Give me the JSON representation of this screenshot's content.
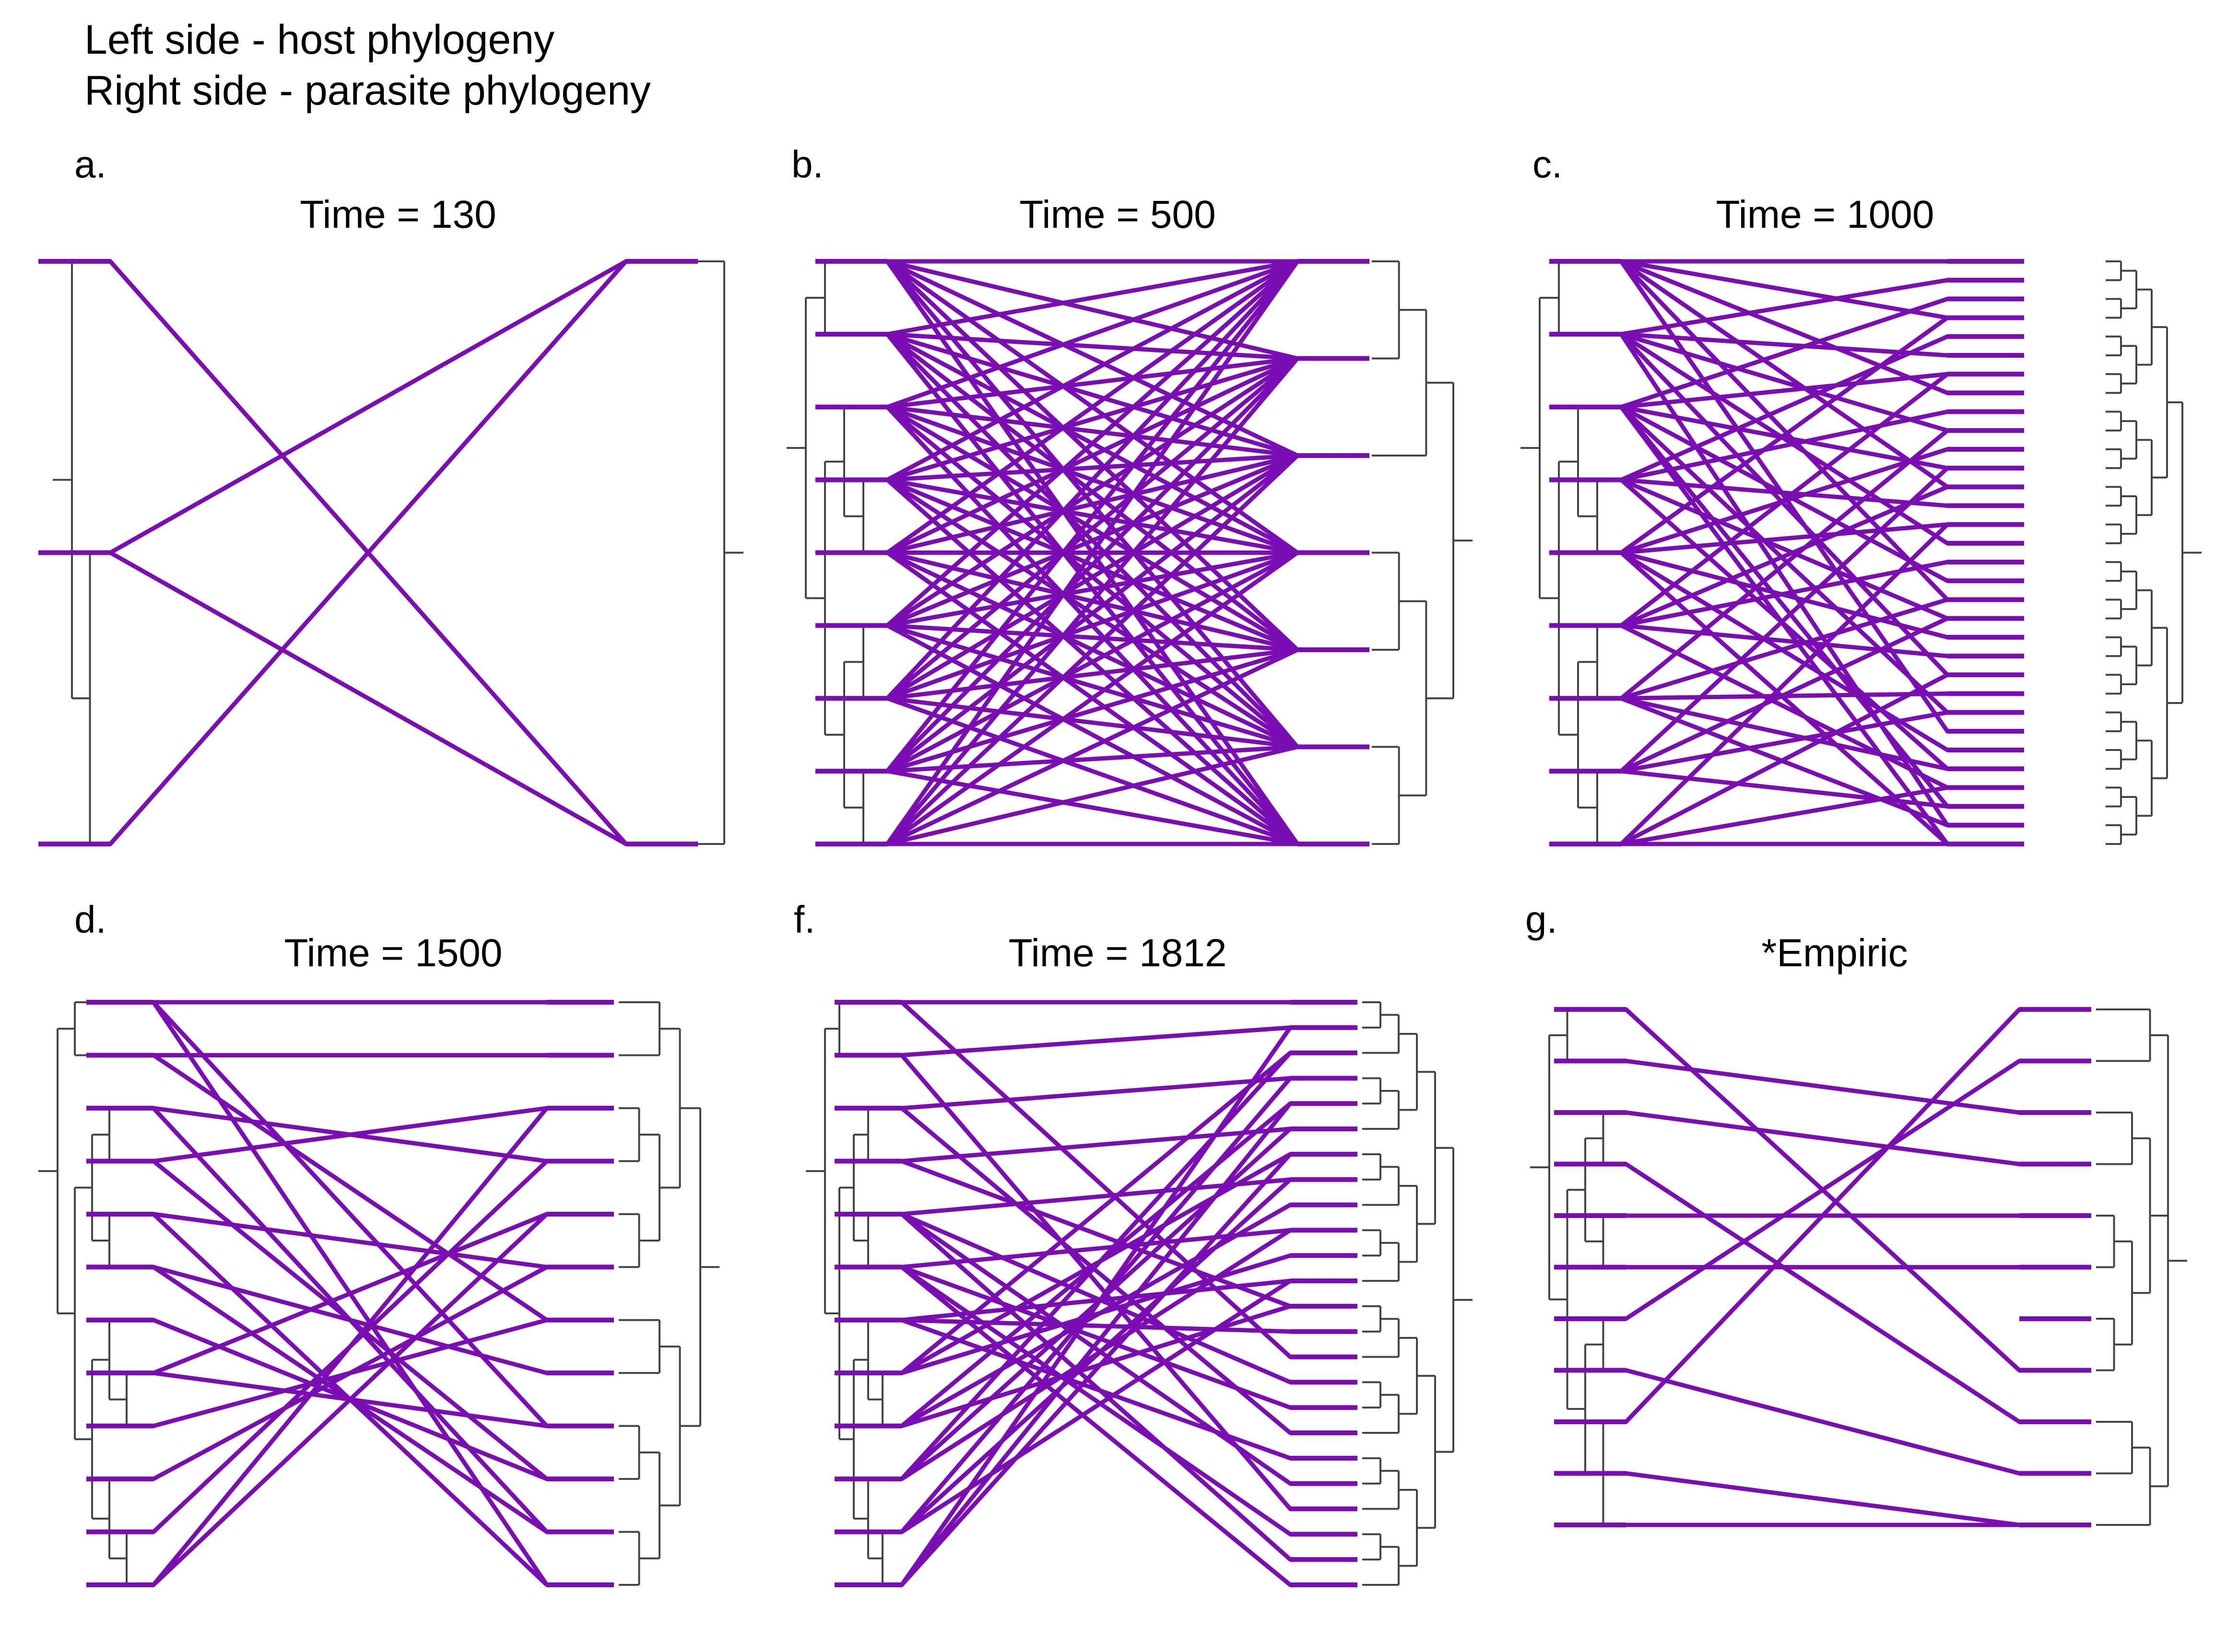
{
  "header": {
    "line1": "Left side - host phylogeny",
    "line2": "Right side - parasite phylogeny"
  },
  "colors": {
    "association": "#7a0db3",
    "tree": "#444444"
  },
  "panels": [
    {
      "label": "a.",
      "title": "Time = 130",
      "host_tips": 3,
      "parasite_tips": 2,
      "host_tree": [
        [
          0,
          [
            1,
            2
          ]
        ]
      ],
      "parasite_tree": [
        0,
        1
      ],
      "links": [
        [
          0,
          1
        ],
        [
          1,
          0
        ],
        [
          1,
          1
        ],
        [
          2,
          0
        ]
      ]
    },
    {
      "label": "b.",
      "title": "Time = 500",
      "host_tips": 9,
      "parasite_tips": 7,
      "host_tree": [
        [
          [
            0,
            1
          ],
          [
            [
              2,
              [
                3,
                4
              ]
            ],
            [
              [
                5,
                6
              ],
              [
                7,
                8
              ]
            ]
          ]
        ]
      ],
      "parasite_tree": [
        [
          [
            0,
            1
          ],
          2
        ],
        [
          [
            3,
            4
          ],
          [
            5,
            6
          ]
        ]
      ],
      "links": "all-to-all"
    },
    {
      "label": "c.",
      "title": "Time = 1000",
      "host_tips": 9,
      "parasite_tips": 32,
      "host_tree": [
        [
          [
            0,
            1
          ],
          [
            [
              2,
              [
                3,
                4
              ]
            ],
            [
              [
                5,
                6
              ],
              [
                7,
                8
              ]
            ]
          ]
        ]
      ],
      "parasite_tree": "balanced",
      "links": [
        [
          0,
          0
        ],
        [
          0,
          3
        ],
        [
          0,
          7
        ],
        [
          0,
          12
        ],
        [
          0,
          18
        ],
        [
          0,
          25
        ],
        [
          1,
          1
        ],
        [
          1,
          5
        ],
        [
          1,
          9
        ],
        [
          1,
          15
        ],
        [
          1,
          22
        ],
        [
          1,
          30
        ],
        [
          2,
          2
        ],
        [
          2,
          6
        ],
        [
          2,
          11
        ],
        [
          2,
          17
        ],
        [
          2,
          24
        ],
        [
          2,
          29
        ],
        [
          2,
          31
        ],
        [
          3,
          4
        ],
        [
          3,
          8
        ],
        [
          3,
          13
        ],
        [
          3,
          19
        ],
        [
          3,
          27
        ],
        [
          4,
          3
        ],
        [
          4,
          10
        ],
        [
          4,
          14
        ],
        [
          4,
          20
        ],
        [
          4,
          26
        ],
        [
          4,
          31
        ],
        [
          5,
          6
        ],
        [
          5,
          12
        ],
        [
          5,
          16
        ],
        [
          5,
          21
        ],
        [
          5,
          28
        ],
        [
          6,
          9
        ],
        [
          6,
          18
        ],
        [
          6,
          23
        ],
        [
          6,
          27
        ],
        [
          6,
          30
        ],
        [
          7,
          11
        ],
        [
          7,
          19
        ],
        [
          7,
          24
        ],
        [
          7,
          29
        ],
        [
          8,
          14
        ],
        [
          8,
          22
        ],
        [
          8,
          28
        ],
        [
          8,
          31
        ]
      ]
    },
    {
      "label": "d.",
      "title": "Time =  1500",
      "host_tips": 12,
      "parasite_tips": 12,
      "host_tree": [
        [
          [
            0,
            1
          ],
          [
            [
              [
                2,
                3
              ],
              [
                4,
                5
              ]
            ],
            [
              [
                6,
                [
                  7,
                  8
                ]
              ],
              [
                9,
                [
                  10,
                  11
                ]
              ]
            ]
          ]
        ]
      ],
      "parasite_tree": [
        [
          [
            0,
            1
          ],
          [
            [
              2,
              3
            ],
            [
              4,
              5
            ]
          ]
        ],
        [
          [
            6,
            7
          ],
          [
            [
              8,
              9
            ],
            [
              10,
              11
            ]
          ]
        ]
      ],
      "links": [
        [
          0,
          0
        ],
        [
          0,
          8
        ],
        [
          0,
          11
        ],
        [
          1,
          1
        ],
        [
          1,
          6
        ],
        [
          2,
          3
        ],
        [
          2,
          10
        ],
        [
          3,
          2
        ],
        [
          3,
          9
        ],
        [
          4,
          5
        ],
        [
          4,
          11
        ],
        [
          5,
          7
        ],
        [
          5,
          10
        ],
        [
          6,
          9
        ],
        [
          7,
          4
        ],
        [
          7,
          8
        ],
        [
          8,
          6
        ],
        [
          9,
          5
        ],
        [
          10,
          3
        ],
        [
          11,
          2
        ],
        [
          11,
          4
        ]
      ]
    },
    {
      "label": "f.",
      "title": "Time = 1812",
      "host_tips": 12,
      "parasite_tips": 24,
      "host_tree": [
        [
          [
            0,
            1
          ],
          [
            [
              [
                2,
                3
              ],
              [
                4,
                5
              ]
            ],
            [
              [
                6,
                [
                  7,
                  8
                ]
              ],
              [
                9,
                [
                  10,
                  11
                ]
              ]
            ]
          ]
        ]
      ],
      "parasite_tree": "balanced",
      "links": [
        [
          0,
          0
        ],
        [
          0,
          14
        ],
        [
          1,
          1
        ],
        [
          1,
          20
        ],
        [
          2,
          3
        ],
        [
          2,
          17
        ],
        [
          3,
          5
        ],
        [
          3,
          12
        ],
        [
          4,
          7
        ],
        [
          4,
          15
        ],
        [
          4,
          19
        ],
        [
          4,
          22
        ],
        [
          5,
          9
        ],
        [
          5,
          16
        ],
        [
          5,
          21
        ],
        [
          5,
          23
        ],
        [
          6,
          11
        ],
        [
          6,
          13
        ],
        [
          6,
          18
        ],
        [
          7,
          2
        ],
        [
          7,
          6
        ],
        [
          7,
          10
        ],
        [
          8,
          4
        ],
        [
          8,
          8
        ],
        [
          8,
          12
        ],
        [
          9,
          2
        ],
        [
          9,
          5
        ],
        [
          9,
          9
        ],
        [
          10,
          3
        ],
        [
          10,
          7
        ],
        [
          10,
          11
        ],
        [
          11,
          1
        ],
        [
          11,
          4
        ],
        [
          11,
          6
        ]
      ]
    },
    {
      "label": "g.",
      "title": "*Empiric",
      "host_tips": 11,
      "parasite_tips": 11,
      "host_tree": [
        [
          [
            0,
            1
          ],
          [
            [
              [
                2,
                3
              ],
              [
                4,
                5
              ]
            ],
            [
              [
                6,
                7
              ],
              [
                8,
                9,
                10
              ]
            ]
          ]
        ]
      ],
      "parasite_tree": [
        [
          0,
          1
        ],
        [
          [
            2,
            3
          ],
          [
            [
              4,
              5
            ],
            [
              6,
              7
            ]
          ]
        ],
        [
          [
            8,
            9
          ],
          10
        ]
      ],
      "links": [
        [
          0,
          7
        ],
        [
          1,
          2
        ],
        [
          2,
          3
        ],
        [
          3,
          8
        ],
        [
          4,
          4
        ],
        [
          5,
          5
        ],
        [
          6,
          1
        ],
        [
          7,
          9
        ],
        [
          8,
          0
        ],
        [
          9,
          10
        ],
        [
          10,
          10
        ]
      ]
    }
  ]
}
